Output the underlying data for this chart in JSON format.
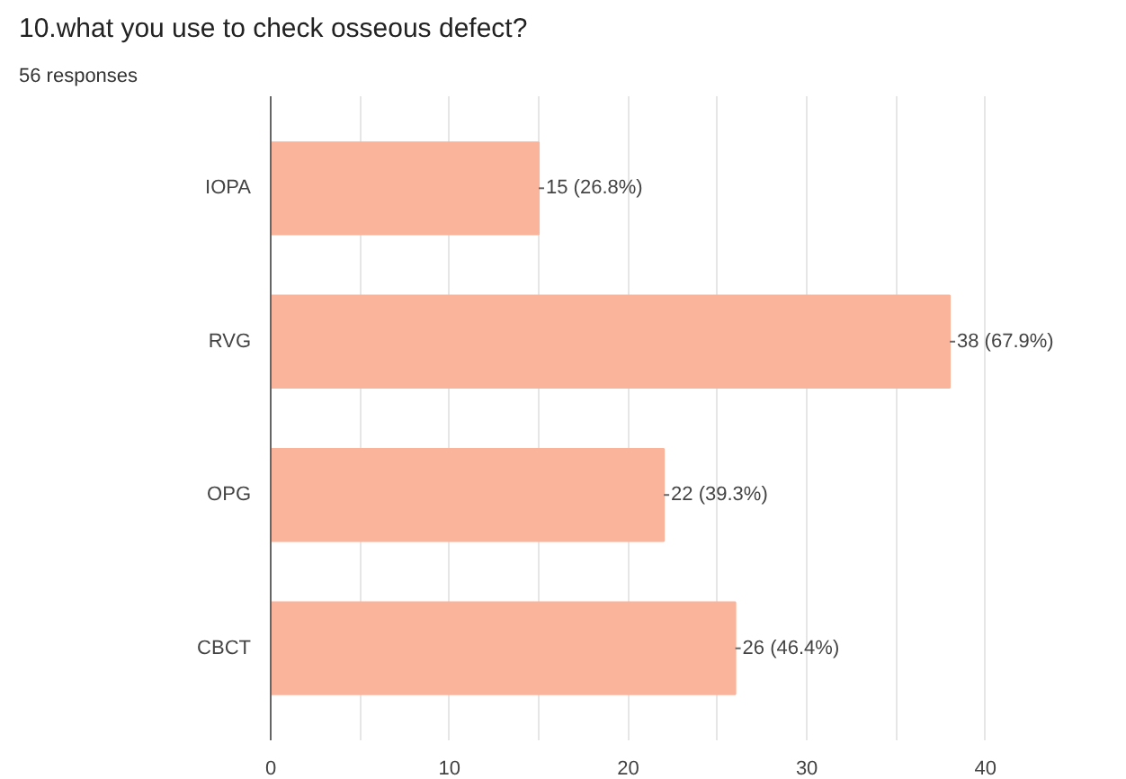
{
  "chart_data": {
    "type": "bar",
    "orientation": "horizontal",
    "title": "10.what you use to check osseous defect?",
    "subtitle": "56 responses",
    "categories": [
      "IOPA",
      "RVG",
      "OPG",
      "CBCT"
    ],
    "values": [
      15,
      38,
      22,
      26
    ],
    "color": "#fbb49c",
    "value_labels": [
      "15 (26.8%)",
      "38 (67.9%)",
      "22 (39.3%)",
      "26 (46.4%)"
    ],
    "xlim": [
      0,
      40
    ],
    "xticks": [
      0,
      {
        "value": 5,
        "label": null
      },
      10,
      {
        "value": 15,
        "label": null
      },
      20,
      {
        "value": 25,
        "label": null
      },
      30,
      {
        "value": 35,
        "label": null
      },
      40
    ],
    "grid": "x"
  }
}
